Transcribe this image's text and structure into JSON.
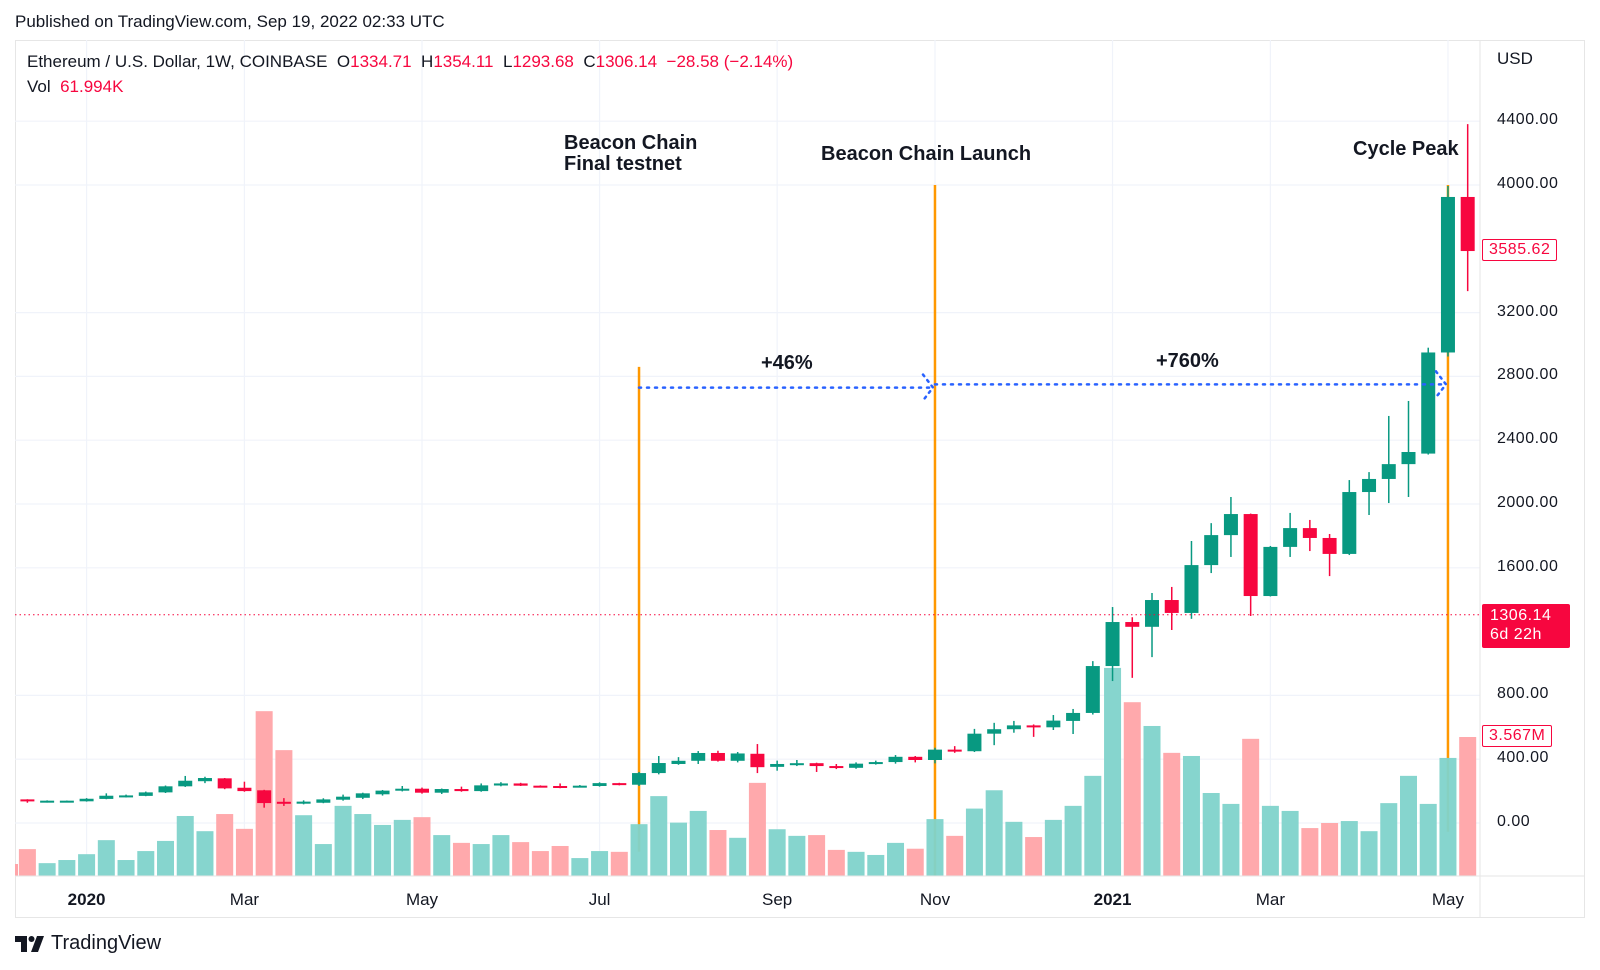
{
  "published": "Published on TradingView.com, Sep 19, 2022 02:33 UTC",
  "legend": {
    "symbol": "Ethereum / U.S. Dollar, 1W, COINBASE",
    "open_label": "O",
    "open": "1334.71",
    "high_label": "H",
    "high": "1354.11",
    "low_label": "L",
    "low": "1293.68",
    "close_label": "C",
    "close": "1306.14",
    "change": "−28.58 (−2.14%)",
    "vol_label": "Vol",
    "vol": "61.994K"
  },
  "currency": "USD",
  "price_labels": {
    "last_bar_close": "3585.62",
    "current_price": "1306.14",
    "countdown": "6d 22h",
    "last_volume": "3.567M"
  },
  "annotations": {
    "testnet_line1": "Beacon Chain",
    "testnet_line2": "Final testnet",
    "launch": "Beacon Chain Launch",
    "peak": "Cycle Peak",
    "gain1": "+46%",
    "gain2": "+760%"
  },
  "brand": "TradingView",
  "colors": {
    "up": "#089981",
    "down": "#f7063f",
    "vol_up": "#80d3cb",
    "vol_down": "#ffa4a8",
    "event_line": "#ff9800",
    "arrow": "#2962ff",
    "grid": "#f0f3fa"
  },
  "chart_data": {
    "type": "candlestick",
    "title": "Ethereum / U.S. Dollar, 1W, COINBASE",
    "ylabel": "USD",
    "ylim": [
      0,
      4400
    ],
    "y_ticks": [
      "4400.00",
      "4000.00",
      "3200.00",
      "2800.00",
      "2400.00",
      "2000.00",
      "1600.00",
      "800.00",
      "400.00",
      "0.00"
    ],
    "y_tick_values": [
      4400,
      4000,
      3200,
      2800,
      2400,
      2000,
      1600,
      800,
      400,
      0
    ],
    "x_ticks": [
      {
        "label": "2020",
        "bar": 3,
        "year": true
      },
      {
        "label": "Mar",
        "bar": 11
      },
      {
        "label": "May",
        "bar": 20
      },
      {
        "label": "Jul",
        "bar": 29
      },
      {
        "label": "Sep",
        "bar": 38
      },
      {
        "label": "Nov",
        "bar": 46
      },
      {
        "label": "2021",
        "bar": 55,
        "year": true
      },
      {
        "label": "Mar",
        "bar": 63
      },
      {
        "label": "May",
        "bar": 72
      }
    ],
    "candle_fields": [
      "open",
      "high",
      "low",
      "close",
      "volume_M"
    ],
    "candles": [
      [
        148,
        149,
        127,
        142,
        0.69
      ],
      [
        132,
        142,
        128,
        140,
        0.33
      ],
      [
        133,
        141,
        129,
        140,
        0.41
      ],
      [
        136,
        156,
        134,
        152,
        0.56
      ],
      [
        151,
        186,
        149,
        171,
        0.92
      ],
      [
        163,
        178,
        160,
        173,
        0.41
      ],
      [
        170,
        197,
        168,
        192,
        0.64
      ],
      [
        192,
        235,
        188,
        230,
        0.9
      ],
      [
        230,
        295,
        226,
        265,
        1.54
      ],
      [
        262,
        290,
        250,
        282,
        1.15
      ],
      [
        280,
        282,
        212,
        217,
        1.59
      ],
      [
        221,
        259,
        196,
        200,
        1.21
      ],
      [
        205,
        208,
        96,
        125,
        4.23
      ],
      [
        133,
        156,
        107,
        121,
        3.23
      ],
      [
        121,
        142,
        117,
        134,
        1.56
      ],
      [
        127,
        155,
        124,
        148,
        0.82
      ],
      [
        146,
        178,
        140,
        165,
        1.8
      ],
      [
        158,
        190,
        150,
        186,
        1.59
      ],
      [
        180,
        207,
        172,
        203,
        1.31
      ],
      [
        203,
        232,
        198,
        215,
        1.44
      ],
      [
        215,
        222,
        184,
        190,
        1.51
      ],
      [
        190,
        216,
        182,
        213,
        1.05
      ],
      [
        213,
        228,
        196,
        200,
        0.85
      ],
      [
        200,
        248,
        196,
        236,
        0.82
      ],
      [
        235,
        256,
        230,
        248,
        1.05
      ],
      [
        248,
        252,
        232,
        234,
        0.87
      ],
      [
        234,
        236,
        224,
        228,
        0.64
      ],
      [
        232,
        248,
        218,
        222,
        0.77
      ],
      [
        228,
        238,
        225,
        234,
        0.46
      ],
      [
        232,
        255,
        228,
        250,
        0.64
      ],
      [
        250,
        252,
        236,
        240,
        0.62
      ],
      [
        240,
        320,
        232,
        313,
        1.33
      ],
      [
        313,
        420,
        305,
        376,
        2.05
      ],
      [
        370,
        413,
        365,
        390,
        1.37
      ],
      [
        390,
        451,
        370,
        439,
        1.67
      ],
      [
        439,
        453,
        385,
        390,
        1.18
      ],
      [
        390,
        445,
        380,
        436,
        0.98
      ],
      [
        434,
        495,
        313,
        350,
        2.39
      ],
      [
        352,
        391,
        328,
        370,
        1.2
      ],
      [
        365,
        395,
        357,
        375,
        1.03
      ],
      [
        375,
        378,
        320,
        357,
        1.05
      ],
      [
        357,
        370,
        338,
        346,
        0.67
      ],
      [
        346,
        380,
        340,
        372,
        0.62
      ],
      [
        372,
        391,
        366,
        382,
        0.54
      ],
      [
        382,
        426,
        372,
        415,
        0.85
      ],
      [
        415,
        420,
        380,
        395,
        0.7
      ],
      [
        395,
        472,
        374,
        460,
        1.46
      ],
      [
        460,
        482,
        440,
        450,
        1.03
      ],
      [
        450,
        590,
        445,
        560,
        1.73
      ],
      [
        560,
        628,
        488,
        588,
        2.2
      ],
      [
        588,
        640,
        566,
        612,
        1.39
      ],
      [
        612,
        618,
        540,
        600,
        1.0
      ],
      [
        600,
        677,
        583,
        642,
        1.44
      ],
      [
        640,
        715,
        558,
        690,
        1.8
      ],
      [
        690,
        1015,
        680,
        984,
        2.57
      ],
      [
        984,
        1354,
        890,
        1260,
        5.34
      ],
      [
        1260,
        1290,
        910,
        1230,
        4.46
      ],
      [
        1230,
        1442,
        1040,
        1398,
        3.85
      ],
      [
        1398,
        1480,
        1210,
        1317,
        3.16
      ],
      [
        1317,
        1768,
        1280,
        1617,
        3.08
      ],
      [
        1617,
        1880,
        1567,
        1805,
        2.13
      ],
      [
        1805,
        2044,
        1668,
        1937,
        1.85
      ],
      [
        1937,
        1940,
        1298,
        1423,
        3.52
      ],
      [
        1423,
        1737,
        1420,
        1731,
        1.8
      ],
      [
        1731,
        1944,
        1668,
        1849,
        1.67
      ],
      [
        1849,
        1900,
        1705,
        1787,
        1.23
      ],
      [
        1787,
        1812,
        1548,
        1687,
        1.36
      ],
      [
        1687,
        2150,
        1680,
        2075,
        1.41
      ],
      [
        2075,
        2200,
        1931,
        2157,
        1.15
      ],
      [
        2157,
        2552,
        2006,
        2250,
        1.87
      ],
      [
        2250,
        2646,
        2044,
        2326,
        2.57
      ],
      [
        2316,
        2980,
        2310,
        2950,
        1.85
      ],
      [
        2950,
        3994,
        2925,
        3925,
        3.03
      ],
      [
        3925,
        4382,
        3335,
        3586,
        3.567
      ]
    ],
    "current_price": 1306.14,
    "event_lines": [
      {
        "bar": 31,
        "label": "Beacon Chain Final testnet",
        "from_price": 2860,
        "to_price": -180
      },
      {
        "bar": 46,
        "label": "Beacon Chain Launch",
        "from_price": 4000,
        "to_price": -330
      },
      {
        "bar": 72,
        "label": "Cycle Peak",
        "from_price": 4000,
        "to_price": -55
      }
    ],
    "measure_arrows": [
      {
        "from_bar": 31,
        "to_bar": 46,
        "price": 2730,
        "label": "+46%"
      },
      {
        "from_bar": 46,
        "to_bar": 72,
        "price": 2750,
        "label": "+760%"
      }
    ],
    "grid": true
  }
}
